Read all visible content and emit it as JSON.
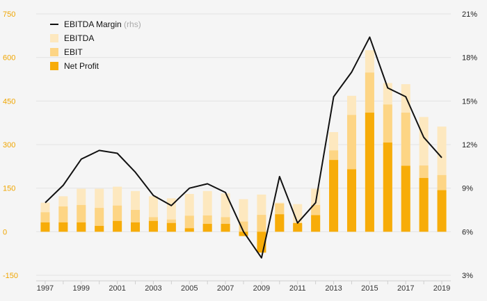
{
  "chart_data": {
    "type": "bar",
    "categories": [
      "1997",
      "1998",
      "1999",
      "2000",
      "2001",
      "2002",
      "2003",
      "2004",
      "2005",
      "2006",
      "2007",
      "2008",
      "2009",
      "2010",
      "2011",
      "2012",
      "2013",
      "2014",
      "2015",
      "2016",
      "2017",
      "2018",
      "2019"
    ],
    "x_tick_labels": [
      "1997",
      "1999",
      "2001",
      "2003",
      "2005",
      "2007",
      "2009",
      "2011",
      "2013",
      "2015",
      "2017",
      "2019"
    ],
    "series": [
      {
        "name": "EBITDA",
        "kind": "bar",
        "axis": "left",
        "color": "#fde8bf",
        "values": [
          100,
          122,
          148,
          148,
          155,
          140,
          122,
          115,
          130,
          140,
          132,
          112,
          128,
          100,
          95,
          148,
          343,
          468,
          625,
          512,
          508,
          395,
          362
        ]
      },
      {
        "name": "EBIT",
        "kind": "bar",
        "axis": "left",
        "color": "#fdd585",
        "values": [
          67,
          87,
          92,
          82,
          90,
          75,
          50,
          42,
          55,
          56,
          50,
          35,
          58,
          97,
          25,
          92,
          280,
          402,
          548,
          438,
          410,
          228,
          195
        ]
      },
      {
        "name": "Net Profit",
        "kind": "bar",
        "axis": "left",
        "color": "#f7ac09",
        "values": [
          32,
          32,
          32,
          20,
          37,
          32,
          37,
          30,
          12,
          27,
          27,
          -15,
          -72,
          60,
          30,
          57,
          247,
          215,
          410,
          307,
          227,
          185,
          143
        ]
      },
      {
        "name": "EBITDA Margin",
        "name_note": "(rhs)",
        "kind": "line",
        "axis": "right",
        "color": "#111111",
        "values": [
          8.0,
          9.2,
          11.0,
          11.6,
          11.4,
          10.1,
          8.5,
          7.8,
          9.0,
          9.3,
          8.7,
          6.0,
          4.2,
          9.8,
          6.6,
          8.0,
          15.3,
          17.0,
          19.4,
          15.9,
          15.3,
          12.5,
          11.1
        ]
      }
    ],
    "y_left": {
      "range": [
        -150,
        750
      ],
      "ticks": [
        "-150",
        "0",
        "150",
        "300",
        "450",
        "600",
        "750"
      ],
      "tick_color": "#f0a500"
    },
    "y_right": {
      "range": [
        3,
        21
      ],
      "ticks": [
        "3%",
        "6%",
        "9%",
        "12%",
        "15%",
        "18%",
        "21%"
      ]
    },
    "legend": {
      "position": "top-left",
      "order": [
        "EBITDA Margin",
        "EBITDA",
        "EBIT",
        "Net Profit"
      ]
    },
    "grid": true
  }
}
